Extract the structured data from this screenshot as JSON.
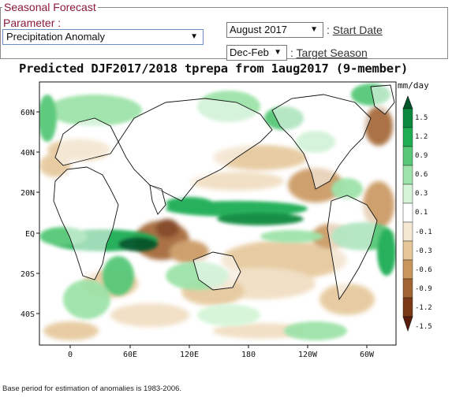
{
  "form": {
    "legend": "Seasonal Forecast",
    "parameter_label": "Parameter :",
    "parameter_value": "Precipitation Anomaly",
    "start_value": "August 2017",
    "start_label_prefix": ": ",
    "start_label": "Start Date",
    "season_value": "Dec-Feb",
    "season_label_prefix": ": ",
    "season_label": "Target Season"
  },
  "chart": {
    "title": "Predicted DJF2017/2018 tprepa from 1aug2017 (9-member)",
    "unit": "mm/day",
    "lat_ticks": [
      "60N",
      "40N",
      "20N",
      "EQ",
      "20S",
      "40S"
    ],
    "lon_ticks": [
      "0",
      "60E",
      "120E",
      "180",
      "120W",
      "60W"
    ],
    "colorbar_labels": [
      "1.5",
      "1.2",
      "0.9",
      "0.6",
      "0.3",
      "0.1",
      "-0.1",
      "-0.3",
      "-0.6",
      "-0.9",
      "-1.2",
      "-1.5"
    ],
    "colors": {
      "wet": [
        "#00562a",
        "#0b8a3d",
        "#1fad54",
        "#57c878",
        "#9ee3a9",
        "#d5f5d8"
      ],
      "dry": [
        "#f5e8d3",
        "#e5c79a",
        "#c9965e",
        "#a16433",
        "#7a3a17",
        "#5a1e0d"
      ]
    }
  },
  "footnote": "Base period for estimation of anomalies is 1983-2006."
}
